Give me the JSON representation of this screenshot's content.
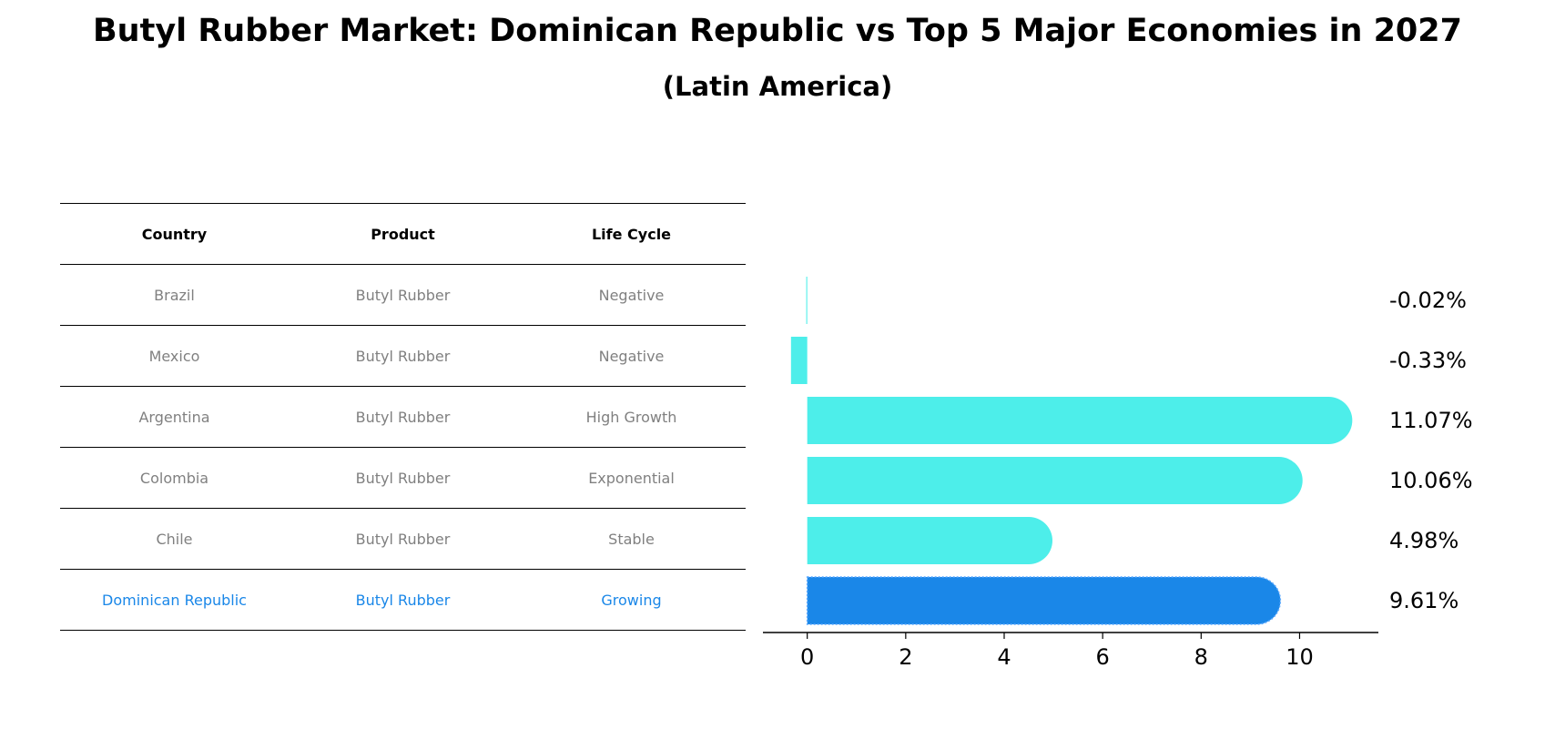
{
  "title": "Butyl Rubber Market: Dominican Republic vs Top 5 Major Economies in 2027",
  "subtitle": "(Latin America)",
  "table": {
    "headers": [
      "Country",
      "Product",
      "Life Cycle"
    ],
    "rows": [
      [
        "Brazil",
        "Butyl Rubber",
        "Negative"
      ],
      [
        "Mexico",
        "Butyl Rubber",
        "Negative"
      ],
      [
        "Argentina",
        "Butyl Rubber",
        "High Growth"
      ],
      [
        "Colombia",
        "Butyl Rubber",
        "Exponential"
      ],
      [
        "Chile",
        "Butyl Rubber",
        "Stable"
      ],
      [
        "Dominican Republic",
        "Butyl Rubber",
        "Growing"
      ]
    ],
    "highlight_row": 5
  },
  "colors": {
    "bar": "#4deeea",
    "highlight": "#1a87e8"
  },
  "chart_data": {
    "type": "bar",
    "orientation": "horizontal",
    "categories": [
      "Brazil",
      "Mexico",
      "Argentina",
      "Colombia",
      "Chile",
      "Dominican Republic"
    ],
    "values": [
      -0.02,
      -0.33,
      11.07,
      10.06,
      4.98,
      9.61
    ],
    "value_labels": [
      "-0.02%",
      "-0.33%",
      "11.07%",
      "10.06%",
      "4.98%",
      "9.61%"
    ],
    "highlight_index": 5,
    "xlim": [
      -0.9,
      11.6
    ],
    "xticks": [
      0,
      2,
      4,
      6,
      8,
      10
    ],
    "xlabel": "",
    "ylabel": "",
    "grid": false
  }
}
